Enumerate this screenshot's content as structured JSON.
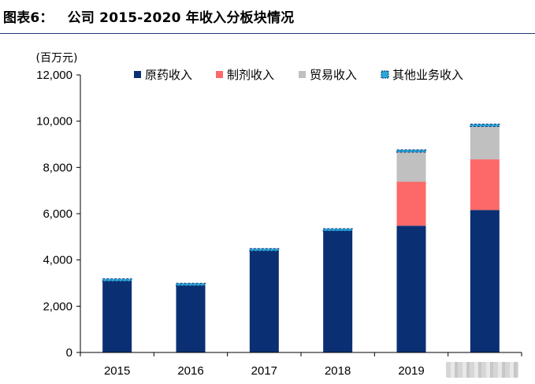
{
  "figure": {
    "label": "图表6：",
    "title": "公司 2015-2020 年收入分板块情况"
  },
  "colors": {
    "title_rule": "#1f3b7a",
    "axis": "#000000"
  },
  "chart_data": {
    "type": "bar",
    "stacked": true,
    "unit_label": "(百万元)",
    "categories": [
      "2015",
      "2016",
      "2017",
      "2018",
      "2019",
      "2020"
    ],
    "x_tick_labels": [
      "2015",
      "2016",
      "2017",
      "2018",
      "2019",
      ""
    ],
    "series": [
      {
        "name": "原药收入",
        "color": "#0b2f73",
        "values": [
          3080,
          2890,
          4390,
          5250,
          5480,
          6160
        ]
      },
      {
        "name": "制剂收入",
        "color": "#fd6969",
        "values": [
          0,
          0,
          0,
          0,
          1900,
          2190
        ]
      },
      {
        "name": "贸易收入",
        "color": "#c0c0c0",
        "values": [
          0,
          0,
          0,
          0,
          1280,
          1420
        ]
      },
      {
        "name": "其他业务收入",
        "color": "#2aa8d8",
        "values": [
          30,
          30,
          30,
          30,
          30,
          30
        ]
      }
    ],
    "ylim": [
      0,
      12000
    ],
    "y_ticks": [
      0,
      2000,
      4000,
      6000,
      8000,
      10000,
      12000
    ],
    "y_tick_labels": [
      "0",
      "2,000",
      "4,000",
      "6,000",
      "8,000",
      "10,000",
      "12,000"
    ],
    "grid": false,
    "legend_position": "top"
  }
}
